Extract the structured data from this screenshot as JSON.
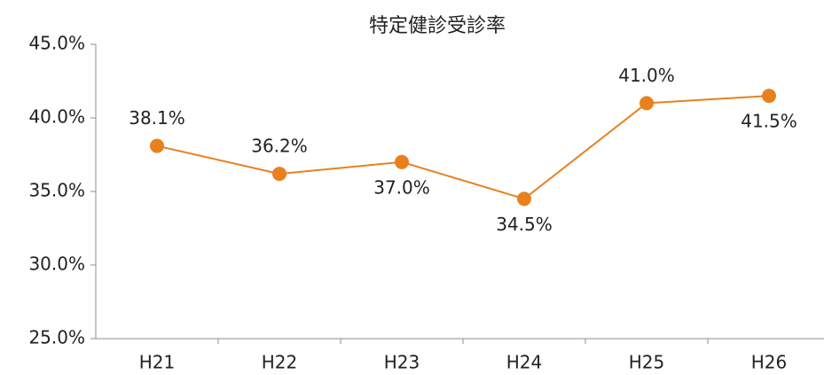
{
  "chart_data": {
    "type": "line",
    "title": "特定健診受診率",
    "categories": [
      "H21",
      "H22",
      "H23",
      "H24",
      "H25",
      "H26"
    ],
    "series": [
      {
        "name": "特定健診受診率",
        "color": "#e8801e",
        "values": [
          38.1,
          36.2,
          37.0,
          34.5,
          41.0,
          41.5
        ],
        "value_labels": [
          "38.1%",
          "36.2%",
          "37.0%",
          "34.5%",
          "41.0%",
          "41.5%"
        ]
      }
    ],
    "ylim": [
      25,
      45
    ],
    "yticks": [
      {
        "value": 25,
        "label": "25.0%"
      },
      {
        "value": 30,
        "label": "30.0%"
      },
      {
        "value": 35,
        "label": "35.0%"
      },
      {
        "value": 40,
        "label": "40.0%"
      },
      {
        "value": 45,
        "label": "45.0%"
      }
    ],
    "grid": false
  }
}
